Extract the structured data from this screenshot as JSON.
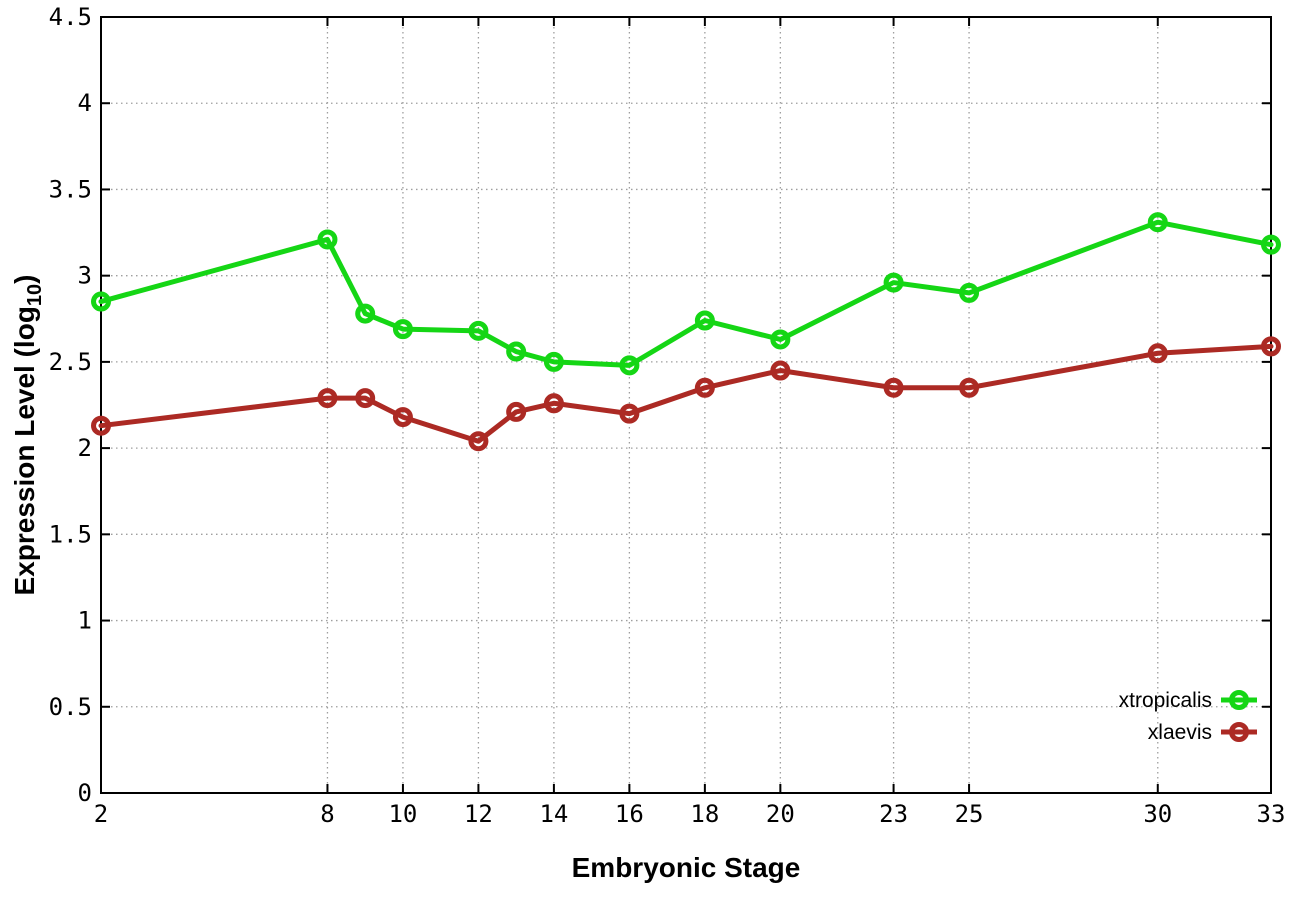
{
  "chart_data": {
    "type": "line",
    "title": "",
    "xlabel": "Embryonic Stage",
    "ylabel": {
      "prefix": "Expression Level (log",
      "subscript": "10",
      "suffix": ")"
    },
    "x": [
      2,
      8,
      9,
      10,
      12,
      13,
      14,
      16,
      18,
      20,
      23,
      25,
      30,
      33
    ],
    "series": [
      {
        "name": "xtropicalis",
        "color": "#15d615",
        "marker": "open-circle",
        "values": [
          2.85,
          3.21,
          2.78,
          2.69,
          2.68,
          2.56,
          2.5,
          2.48,
          2.74,
          2.63,
          2.96,
          2.9,
          3.31,
          3.18
        ]
      },
      {
        "name": "xlaevis",
        "color": "#ac2a24",
        "marker": "open-circle",
        "values": [
          2.13,
          2.29,
          2.29,
          2.18,
          2.04,
          2.21,
          2.26,
          2.2,
          2.35,
          2.45,
          2.35,
          2.35,
          2.55,
          2.59
        ]
      }
    ],
    "xlim": [
      2,
      33
    ],
    "ylim": [
      0,
      4.5
    ],
    "xticks": [
      2,
      8,
      10,
      12,
      14,
      16,
      18,
      20,
      23,
      25,
      30,
      33
    ],
    "xtick_labels": [
      "2",
      "8",
      "10",
      "12",
      "14",
      "16",
      "18",
      "20",
      "23",
      "25",
      "30",
      "33"
    ],
    "yticks": [
      0,
      0.5,
      1,
      1.5,
      2,
      2.5,
      3,
      3.5,
      4,
      4.5
    ],
    "ytick_labels": [
      "0",
      "0.5",
      "1",
      "1.5",
      "2",
      "2.5",
      "3",
      "3.5",
      "4",
      "4.5"
    ],
    "grid": true,
    "legend_position": "inside-bottom-right",
    "colors": {
      "background": "#ffffff",
      "border": "#000000",
      "grid": "#9e9e9e",
      "tick_text": "#000000"
    }
  }
}
